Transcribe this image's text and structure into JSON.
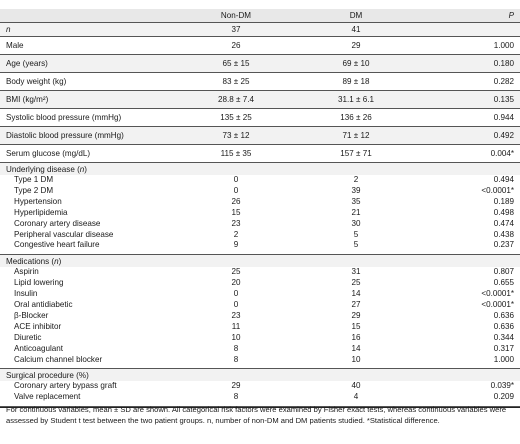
{
  "header": {
    "col0": "",
    "col1": "Non-DM",
    "col2": "DM",
    "col3": "P"
  },
  "n_row": {
    "label": "n",
    "nondm": "37",
    "dm": "41"
  },
  "rows": [
    {
      "label": "Male",
      "nondm": "26",
      "dm": "29",
      "p": "1.000"
    },
    {
      "label": "Age (years)",
      "nondm": "65 ± 15",
      "dm": "69 ± 10",
      "p": "0.180"
    },
    {
      "label": "Body weight (kg)",
      "nondm": "83 ± 25",
      "dm": "89 ± 18",
      "p": "0.282"
    },
    {
      "label": "BMI (kg/m²)",
      "nondm": "28.8 ± 7.4",
      "dm": "31.1 ± 6.1",
      "p": "0.135"
    },
    {
      "label": "Systolic blood pressure (mmHg)",
      "nondm": "135 ± 25",
      "dm": "136 ± 26",
      "p": "0.944"
    },
    {
      "label": "Diastolic blood pressure (mmHg)",
      "nondm": "73 ± 12",
      "dm": "71 ± 12",
      "p": "0.492"
    },
    {
      "label": "Serum glucose (mg/dL)",
      "nondm": "115 ± 35",
      "dm": "157 ± 71",
      "p": "0.004*"
    }
  ],
  "underlying": {
    "title": "Underlying disease (n)",
    "items": [
      {
        "label": "Type 1 DM",
        "nondm": "0",
        "dm": "2",
        "p": "0.494"
      },
      {
        "label": "Type 2 DM",
        "nondm": "0",
        "dm": "39",
        "p": "<0.0001*"
      },
      {
        "label": "Hypertension",
        "nondm": "26",
        "dm": "35",
        "p": "0.189"
      },
      {
        "label": "Hyperlipidemia",
        "nondm": "15",
        "dm": "21",
        "p": "0.498"
      },
      {
        "label": "Coronary artery disease",
        "nondm": "23",
        "dm": "30",
        "p": "0.474"
      },
      {
        "label": "Peripheral vascular disease",
        "nondm": "2",
        "dm": "5",
        "p": "0.438"
      },
      {
        "label": "Congestive heart failure",
        "nondm": "9",
        "dm": "5",
        "p": "0.237"
      }
    ]
  },
  "medications": {
    "title": "Medications (n)",
    "items": [
      {
        "label": "Aspirin",
        "nondm": "25",
        "dm": "31",
        "p": "0.807"
      },
      {
        "label": "Lipid lowering",
        "nondm": "20",
        "dm": "25",
        "p": "0.655"
      },
      {
        "label": "Insulin",
        "nondm": "0",
        "dm": "14",
        "p": "<0.0001*"
      },
      {
        "label": "Oral antidiabetic",
        "nondm": "0",
        "dm": "27",
        "p": "<0.0001*"
      },
      {
        "label": "β-Blocker",
        "nondm": "23",
        "dm": "29",
        "p": "0.636"
      },
      {
        "label": "ACE inhibitor",
        "nondm": "11",
        "dm": "15",
        "p": "0.636"
      },
      {
        "label": "Diuretic",
        "nondm": "10",
        "dm": "16",
        "p": "0.344"
      },
      {
        "label": "Anticoagulant",
        "nondm": "8",
        "dm": "14",
        "p": "0.317"
      },
      {
        "label": "Calcium channel blocker",
        "nondm": "8",
        "dm": "10",
        "p": "1.000"
      }
    ]
  },
  "surgical": {
    "title": "Surgical procedure (%)",
    "items": [
      {
        "label": "Coronary artery bypass graft",
        "nondm": "29",
        "dm": "40",
        "p": "0.039*"
      },
      {
        "label": "Valve replacement",
        "nondm": "8",
        "dm": "4",
        "p": "0.209"
      }
    ]
  },
  "footnote": "For continuous variables, mean ± SD are shown. All categorical risk factors were examined by Fisher exact tests, whereas continuous variables were assessed by Student t test between the two patient groups. n, number of non-DM and DM patients studied. *Statistical difference."
}
